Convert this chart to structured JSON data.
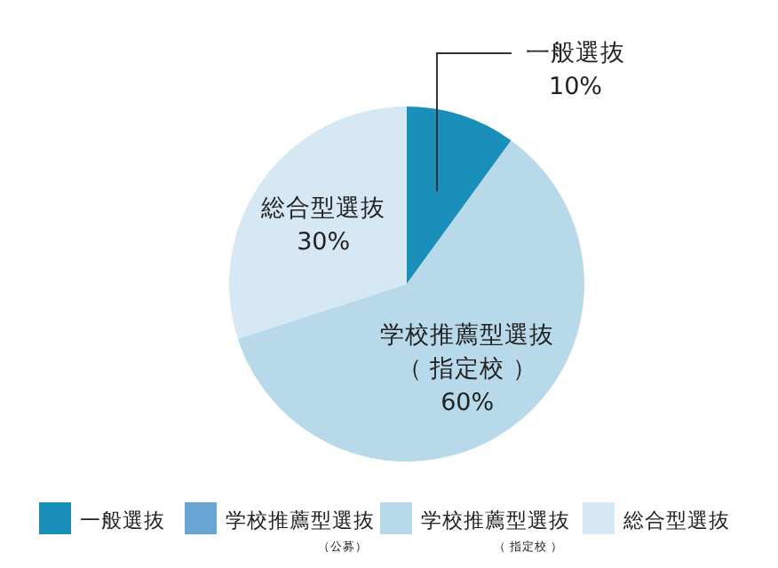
{
  "chart_data": {
    "type": "pie",
    "categories": [
      "一般選抜",
      "学校推薦型選抜（公募）",
      "学校推薦型選抜（ 指定校 ）",
      "総合型選抜"
    ],
    "values": [
      10,
      0,
      60,
      30
    ],
    "colors": [
      "#1a8fba",
      "#6aa6d4",
      "#b8d9ea",
      "#d5e8f3"
    ],
    "value_labels": [
      "10%",
      null,
      "60%",
      "30%"
    ],
    "legend": "bottom"
  }
}
